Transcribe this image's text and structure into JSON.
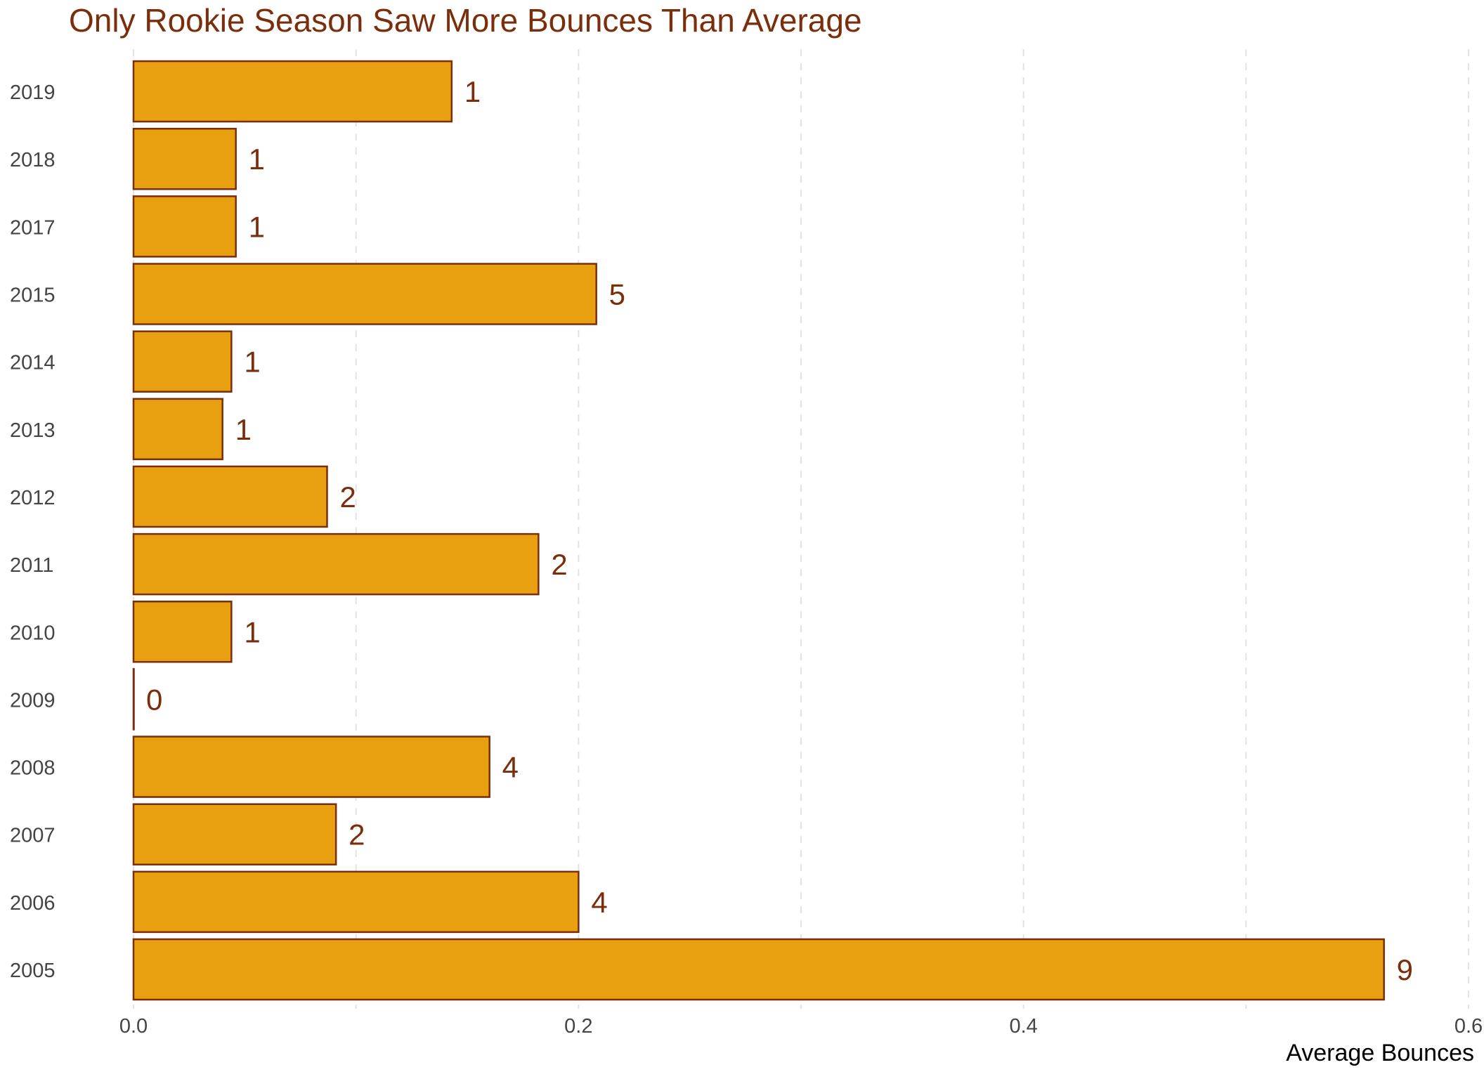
{
  "chart_data": {
    "type": "bar",
    "orientation": "horizontal",
    "title": "Only Rookie Season Saw More Bounces Than Average",
    "xlabel": "Average Bounces",
    "ylabel": "",
    "xlim": [
      0,
      0.6
    ],
    "x_ticks": [
      "0.0",
      "0.2",
      "0.4",
      "0.6"
    ],
    "grid": "vertical dashed",
    "categories": [
      "2019",
      "2018",
      "2017",
      "2015",
      "2014",
      "2013",
      "2012",
      "2011",
      "2010",
      "2009",
      "2008",
      "2007",
      "2006",
      "2005"
    ],
    "values": [
      0.143,
      0.046,
      0.046,
      0.208,
      0.044,
      0.04,
      0.087,
      0.182,
      0.044,
      0.0,
      0.16,
      0.091,
      0.2,
      0.562
    ],
    "labels": [
      "1",
      "1",
      "1",
      "5",
      "1",
      "1",
      "2",
      "2",
      "1",
      "0",
      "4",
      "2",
      "4",
      "9"
    ],
    "colors": {
      "bar_fill": "#E8A010",
      "bar_stroke": "#7a2e0c",
      "label": "#7a2e0c",
      "title": "#7a2e0c",
      "grid": "#e3e3e3",
      "tick": "#444444"
    }
  }
}
